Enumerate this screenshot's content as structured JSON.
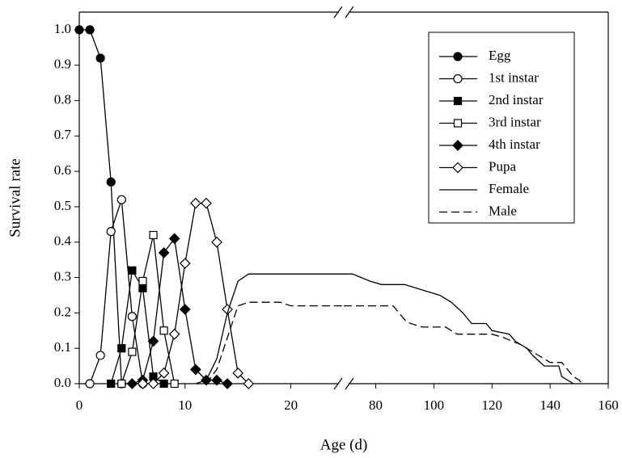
{
  "chart_data": {
    "type": "line",
    "ylabel": "Survival rate",
    "xlabel": "Age (d)",
    "ylim": [
      0,
      1.05
    ],
    "yticks": [
      {
        "value": 0,
        "label": "0.0"
      },
      0.1,
      0.2,
      0.3,
      0.4,
      0.5,
      0.6,
      0.7,
      0.8,
      0.9,
      {
        "value": 1,
        "label": "1.0"
      }
    ],
    "x_segments": [
      {
        "xlim": [
          0,
          25
        ],
        "xticks": [
          0,
          10,
          20
        ]
      },
      {
        "xlim": [
          69,
          160
        ],
        "xticks": [
          80,
          100,
          120,
          140,
          160
        ]
      }
    ],
    "series": [
      {
        "name": "Egg",
        "color": "#000000",
        "marker": "circle",
        "filled": true,
        "dashed": false,
        "x": [
          0,
          1,
          2,
          3,
          4
        ],
        "values": [
          1.0,
          1.0,
          0.92,
          0.57,
          0
        ]
      },
      {
        "name": "1st instar",
        "color": "#000000",
        "marker": "circle",
        "filled": false,
        "dashed": false,
        "x": [
          1,
          2,
          3,
          4,
          5,
          6
        ],
        "values": [
          0,
          0.08,
          0.43,
          0.52,
          0.19,
          0
        ]
      },
      {
        "name": "2nd instar",
        "color": "#000000",
        "marker": "square",
        "filled": true,
        "dashed": false,
        "x": [
          3,
          4,
          5,
          6,
          7,
          8
        ],
        "values": [
          0,
          0.1,
          0.32,
          0.27,
          0.02,
          0
        ]
      },
      {
        "name": "3rd instar",
        "color": "#000000",
        "marker": "square",
        "filled": false,
        "dashed": false,
        "x": [
          4,
          5,
          6,
          7,
          8,
          9
        ],
        "values": [
          0,
          0.09,
          0.29,
          0.42,
          0.15,
          0
        ]
      },
      {
        "name": "4th instar",
        "color": "#000000",
        "marker": "diamond",
        "filled": true,
        "dashed": false,
        "x": [
          5,
          6,
          7,
          8,
          9,
          10,
          11,
          12,
          13,
          14
        ],
        "values": [
          0,
          0.01,
          0.12,
          0.37,
          0.41,
          0.21,
          0.04,
          0.01,
          0.01,
          0
        ]
      },
      {
        "name": "Pupa",
        "color": "#000000",
        "marker": "diamond",
        "filled": false,
        "dashed": false,
        "x": [
          6,
          7,
          8,
          9,
          10,
          11,
          12,
          13,
          14,
          15,
          16
        ],
        "values": [
          0,
          0,
          0.03,
          0.14,
          0.34,
          0.51,
          0.51,
          0.4,
          0.21,
          0.03,
          0
        ]
      },
      {
        "name": "Female",
        "color": "#000000",
        "marker": "none",
        "filled": false,
        "dashed": false,
        "x": [
          11,
          12,
          13,
          14,
          15,
          16,
          25,
          69,
          72,
          75,
          78,
          82,
          90,
          94,
          98,
          102,
          106,
          110,
          113,
          118,
          120,
          126,
          128,
          132,
          134,
          138,
          143,
          144,
          146,
          148
        ],
        "values": [
          0,
          0.01,
          0.07,
          0.2,
          0.29,
          0.31,
          0.31,
          0.31,
          0.31,
          0.3,
          0.29,
          0.28,
          0.28,
          0.27,
          0.26,
          0.25,
          0.23,
          0.2,
          0.17,
          0.17,
          0.15,
          0.14,
          0.12,
          0.1,
          0.08,
          0.05,
          0.05,
          0.02,
          0.01,
          0
        ]
      },
      {
        "name": "Male",
        "color": "#000000",
        "marker": "none",
        "filled": false,
        "dashed": true,
        "x": [
          12,
          13,
          14,
          15,
          16,
          19,
          20,
          25,
          69,
          86,
          88,
          90,
          92,
          96,
          104,
          106,
          108,
          120,
          124,
          130,
          134,
          138,
          140,
          144,
          146,
          148,
          150,
          151
        ],
        "values": [
          0,
          0.04,
          0.13,
          0.22,
          0.23,
          0.23,
          0.22,
          0.22,
          0.22,
          0.22,
          0.2,
          0.18,
          0.17,
          0.16,
          0.16,
          0.15,
          0.14,
          0.14,
          0.13,
          0.11,
          0.09,
          0.07,
          0.06,
          0.06,
          0.04,
          0.02,
          0.01,
          0
        ]
      }
    ]
  }
}
